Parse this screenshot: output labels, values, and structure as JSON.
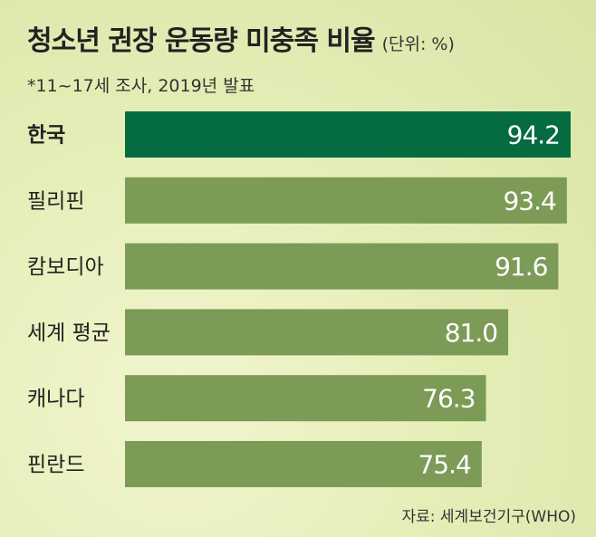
{
  "title": "청소년 권장 운동량 미충족 비율",
  "unit": "(단위: %)",
  "subtitle": "*11~17세 조사, 2019년 발표",
  "source": "자료: 세계보건기구(WHO)",
  "colors": {
    "highlight_bar": "#056b41",
    "bar": "#7c9b56",
    "background": "#e6eeb8"
  },
  "chart_data": {
    "type": "bar",
    "orientation": "horizontal",
    "title": "청소년 권장 운동량 미충족 비율",
    "categories": [
      "한국",
      "필리핀",
      "캄보디아",
      "세계 평균",
      "캐나다",
      "핀란드"
    ],
    "values": [
      94.2,
      93.4,
      91.6,
      81.0,
      76.3,
      75.4
    ],
    "value_labels": [
      "94.2",
      "93.4",
      "91.6",
      "81.0",
      "76.3",
      "75.4"
    ],
    "highlight": "한국",
    "unit": "%"
  }
}
